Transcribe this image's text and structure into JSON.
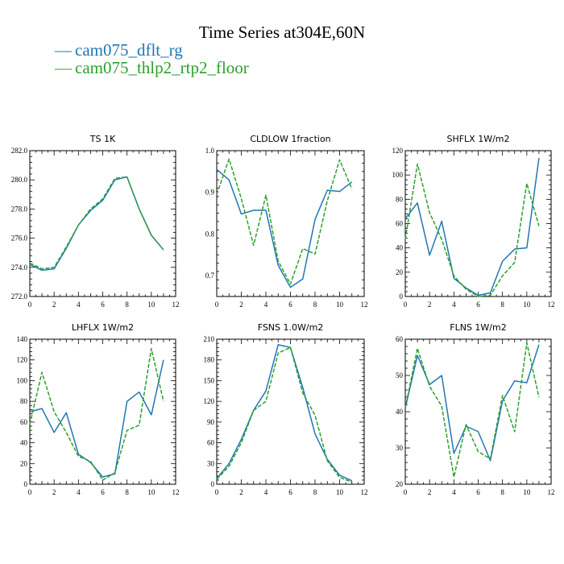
{
  "title": "Time Series at304E,60N",
  "legend": [
    {
      "label": "cam075_dflt_rg",
      "color": "#1f77b4",
      "dash": "—"
    },
    {
      "label": "cam075_thlp2_rtp2_floor",
      "color": "#2ca02c",
      "dash": "—"
    }
  ],
  "chart_data": [
    {
      "type": "line",
      "title": "TS   1K",
      "xlim": [
        0,
        12
      ],
      "ylim": [
        272,
        282
      ],
      "xticks": [
        0,
        2,
        4,
        6,
        8,
        10,
        12
      ],
      "yticks": [
        272,
        274,
        276,
        278,
        280,
        282
      ],
      "ytick_labels": [
        "272.0",
        "274.0",
        "276.0",
        "278.0",
        "280.0",
        "282.0"
      ],
      "x": [
        0,
        1,
        2,
        3,
        4,
        5,
        6,
        7,
        8,
        9,
        10,
        11
      ],
      "series": [
        {
          "name": "cam075_dflt_rg",
          "values": [
            274.2,
            273.8,
            273.9,
            275.3,
            276.9,
            277.9,
            278.6,
            280.0,
            280.2,
            278.0,
            276.2,
            275.2
          ]
        },
        {
          "name": "cam075_thlp2_rtp2_floor",
          "values": [
            274.3,
            273.9,
            274.0,
            275.4,
            276.9,
            278.0,
            278.7,
            280.1,
            280.2,
            278.0,
            276.2,
            275.2
          ]
        }
      ]
    },
    {
      "type": "line",
      "title": "CLDLOW   1fraction",
      "xlim": [
        0,
        12
      ],
      "ylim": [
        0.65,
        1.0
      ],
      "xticks": [
        0,
        2,
        4,
        6,
        8,
        10,
        12
      ],
      "yticks": [
        0.7,
        0.8,
        0.9,
        1.0
      ],
      "ytick_labels": [
        "0.7",
        "0.8",
        "0.9",
        "1.0"
      ],
      "x": [
        0,
        1,
        2,
        3,
        4,
        5,
        6,
        7,
        8,
        9,
        10,
        11
      ],
      "series": [
        {
          "name": "cam075_dflt_rg",
          "values": [
            0.955,
            0.93,
            0.848,
            0.857,
            0.857,
            0.725,
            0.672,
            0.692,
            0.835,
            0.905,
            0.902,
            0.925
          ]
        },
        {
          "name": "cam075_thlp2_rtp2_floor",
          "values": [
            0.895,
            0.98,
            0.885,
            0.773,
            0.893,
            0.735,
            0.68,
            0.765,
            0.752,
            0.88,
            0.978,
            0.908
          ]
        }
      ]
    },
    {
      "type": "line",
      "title": "SHFLX   1W/m2",
      "xlim": [
        0,
        12
      ],
      "ylim": [
        0,
        120
      ],
      "xticks": [
        0,
        2,
        4,
        6,
        8,
        10,
        12
      ],
      "yticks": [
        0,
        20,
        40,
        60,
        80,
        100,
        120
      ],
      "ytick_labels": [
        "0",
        "20",
        "40",
        "60",
        "80",
        "100",
        "120"
      ],
      "x": [
        0,
        1,
        2,
        3,
        4,
        5,
        6,
        7,
        8,
        9,
        10,
        11
      ],
      "series": [
        {
          "name": "cam075_dflt_rg",
          "values": [
            64,
            77,
            34,
            62,
            15,
            7,
            1,
            3,
            29,
            39,
            40,
            114
          ]
        },
        {
          "name": "cam075_thlp2_rtp2_floor",
          "values": [
            47,
            109,
            69,
            47,
            17,
            6,
            0,
            1,
            17,
            28,
            93,
            58
          ]
        }
      ]
    },
    {
      "type": "line",
      "title": "LHFLX   1W/m2",
      "xlim": [
        0,
        12
      ],
      "ylim": [
        0,
        140
      ],
      "xticks": [
        0,
        2,
        4,
        6,
        8,
        10,
        12
      ],
      "yticks": [
        0,
        20,
        40,
        60,
        80,
        100,
        120,
        140
      ],
      "ytick_labels": [
        "0",
        "20",
        "40",
        "60",
        "80",
        "100",
        "120",
        "140"
      ],
      "x": [
        0,
        1,
        2,
        3,
        4,
        5,
        6,
        7,
        8,
        9,
        10,
        11
      ],
      "series": [
        {
          "name": "cam075_dflt_rg",
          "values": [
            70,
            73,
            50,
            69,
            29,
            21,
            7,
            10,
            80,
            89,
            67,
            120
          ]
        },
        {
          "name": "cam075_thlp2_rtp2_floor",
          "values": [
            58,
            108,
            70,
            50,
            27,
            22,
            4,
            11,
            52,
            57,
            131,
            80
          ]
        }
      ]
    },
    {
      "type": "line",
      "title": "FSNS   1.0W/m2",
      "xlim": [
        0,
        12
      ],
      "ylim": [
        0,
        210
      ],
      "xticks": [
        0,
        2,
        4,
        6,
        8,
        10,
        12
      ],
      "yticks": [
        0,
        30,
        60,
        90,
        120,
        150,
        180,
        210
      ],
      "ytick_labels": [
        "0",
        "30",
        "60",
        "90",
        "120",
        "150",
        "180",
        "210"
      ],
      "x": [
        0,
        1,
        2,
        3,
        4,
        5,
        6,
        7,
        8,
        9,
        10,
        11
      ],
      "series": [
        {
          "name": "cam075_dflt_rg",
          "values": [
            8,
            30,
            65,
            107,
            135,
            202,
            198,
            140,
            73,
            36,
            13,
            5
          ]
        },
        {
          "name": "cam075_thlp2_rtp2_floor",
          "values": [
            7,
            26,
            60,
            107,
            120,
            190,
            198,
            132,
            100,
            34,
            10,
            3
          ]
        }
      ]
    },
    {
      "type": "line",
      "title": "FLNS   1W/m2",
      "xlim": [
        0,
        12
      ],
      "ylim": [
        20,
        60
      ],
      "xticks": [
        0,
        2,
        4,
        6,
        8,
        10,
        12
      ],
      "yticks": [
        20,
        30,
        40,
        50,
        60
      ],
      "ytick_labels": [
        "20",
        "30",
        "40",
        "50",
        "60"
      ],
      "x": [
        0,
        1,
        2,
        3,
        4,
        5,
        6,
        7,
        8,
        9,
        10,
        11
      ],
      "series": [
        {
          "name": "cam075_dflt_rg",
          "values": [
            41,
            55.5,
            47.5,
            50,
            28.5,
            36,
            34.5,
            26.5,
            43,
            48.5,
            48,
            58.5
          ]
        },
        {
          "name": "cam075_thlp2_rtp2_floor",
          "values": [
            41,
            57.5,
            47,
            41.5,
            22,
            36.5,
            29,
            27,
            44.5,
            34.5,
            59,
            44
          ]
        }
      ]
    }
  ]
}
